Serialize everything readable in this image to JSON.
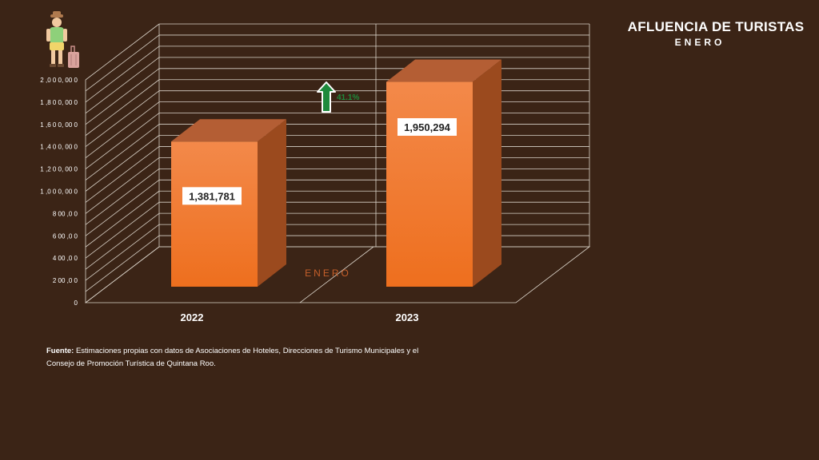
{
  "header": {
    "title": "AFLUENCIA DE TURISTAS",
    "subtitle": "ENERO"
  },
  "icon": "tourist-with-suitcase-icon",
  "colors": {
    "background": "#3b2416",
    "bar_front": "#f07a2c",
    "bar_top": "#b45e34",
    "bar_side": "#9b4a1e",
    "grid": "#d9d2c8",
    "growth_arrow": "#1e8a3c",
    "category_label": "#c55f2a"
  },
  "footer": {
    "label": "Fuente:",
    "text": " Estimaciones propias con datos de Asociaciones de Hoteles, Direcciones de Turismo Municipales y el Consejo de Promoción Turística de Quintana Roo."
  },
  "chart_data": {
    "type": "bar",
    "categories": [
      "2022",
      "2023"
    ],
    "values": [
      1381781,
      1950294
    ],
    "value_labels": [
      "1,381,781",
      "1,950,294"
    ],
    "category_label": "ENERO",
    "growth_label": "41.1%",
    "ylim": [
      0,
      2000000
    ],
    "yticks": [
      0,
      200000,
      400000,
      600000,
      800000,
      1000000,
      1200000,
      1400000,
      1600000,
      1800000,
      2000000
    ],
    "ytick_labels": [
      "0",
      "2 00 ,0 0",
      "4 00 ,0 0",
      "6 00 ,0 0",
      "8 00 ,0 0",
      "1 ,0 0 0, 00 0",
      "1 ,2 0 0, 00 0",
      "1 ,4 0 0, 00 0",
      "1 ,6 0 0, 00 0",
      "1 ,8 0 0, 00 0",
      "2 ,0 0 0, 00 0"
    ],
    "grid": true,
    "style": "3d"
  }
}
